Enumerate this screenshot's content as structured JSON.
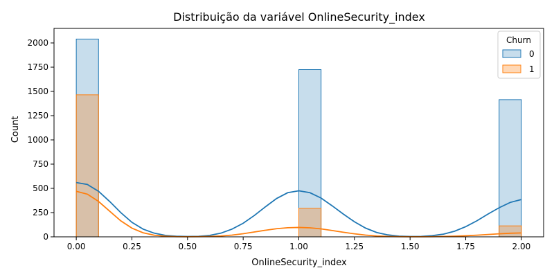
{
  "chart_data": {
    "type": "histogram",
    "title": "Distribuição da variável OnlineSecurity_index",
    "xlabel": "OnlineSecurity_index",
    "ylabel": "Count",
    "xlim": [
      -0.1,
      2.1
    ],
    "ylim": [
      0,
      2150
    ],
    "xticks": [
      0.0,
      0.25,
      0.5,
      0.75,
      1.0,
      1.25,
      1.5,
      1.75,
      2.0
    ],
    "xtick_labels": [
      "0.00",
      "0.25",
      "0.50",
      "0.75",
      "1.00",
      "1.25",
      "1.50",
      "1.75",
      "2.00"
    ],
    "yticks": [
      0,
      250,
      500,
      750,
      1000,
      1250,
      1500,
      1750,
      2000
    ],
    "ytick_labels": [
      "0",
      "250",
      "500",
      "750",
      "1000",
      "1250",
      "1500",
      "1750",
      "2000"
    ],
    "bin_width": 0.1,
    "bins": [
      0.0,
      1.0,
      1.9
    ],
    "grid": false,
    "legend": {
      "title": "Churn",
      "position": "top-right"
    },
    "series": [
      {
        "name": "0",
        "color": "#1f77b4",
        "values": [
          2040,
          1725,
          1415
        ],
        "kde": [
          [
            0.0,
            560
          ],
          [
            0.05,
            540
          ],
          [
            0.1,
            470
          ],
          [
            0.15,
            365
          ],
          [
            0.2,
            250
          ],
          [
            0.25,
            150
          ],
          [
            0.3,
            80
          ],
          [
            0.35,
            38
          ],
          [
            0.4,
            15
          ],
          [
            0.45,
            6
          ],
          [
            0.5,
            3
          ],
          [
            0.55,
            5
          ],
          [
            0.6,
            15
          ],
          [
            0.65,
            38
          ],
          [
            0.7,
            80
          ],
          [
            0.75,
            140
          ],
          [
            0.8,
            220
          ],
          [
            0.85,
            310
          ],
          [
            0.9,
            395
          ],
          [
            0.95,
            455
          ],
          [
            1.0,
            475
          ],
          [
            1.05,
            455
          ],
          [
            1.1,
            400
          ],
          [
            1.15,
            320
          ],
          [
            1.2,
            235
          ],
          [
            1.25,
            155
          ],
          [
            1.3,
            90
          ],
          [
            1.35,
            45
          ],
          [
            1.4,
            20
          ],
          [
            1.45,
            7
          ],
          [
            1.5,
            3
          ],
          [
            1.55,
            4
          ],
          [
            1.6,
            12
          ],
          [
            1.65,
            28
          ],
          [
            1.7,
            58
          ],
          [
            1.75,
            105
          ],
          [
            1.8,
            165
          ],
          [
            1.85,
            235
          ],
          [
            1.9,
            300
          ],
          [
            1.95,
            355
          ],
          [
            2.0,
            385
          ]
        ]
      },
      {
        "name": "1",
        "color": "#ff7f0e",
        "values": [
          1465,
          295,
          113
        ],
        "kde": [
          [
            0.0,
            470
          ],
          [
            0.05,
            440
          ],
          [
            0.1,
            365
          ],
          [
            0.15,
            265
          ],
          [
            0.2,
            165
          ],
          [
            0.25,
            90
          ],
          [
            0.3,
            42
          ],
          [
            0.35,
            17
          ],
          [
            0.4,
            6
          ],
          [
            0.45,
            2
          ],
          [
            0.5,
            1
          ],
          [
            0.55,
            2
          ],
          [
            0.6,
            4
          ],
          [
            0.65,
            9
          ],
          [
            0.7,
            18
          ],
          [
            0.75,
            32
          ],
          [
            0.8,
            50
          ],
          [
            0.85,
            68
          ],
          [
            0.9,
            84
          ],
          [
            0.95,
            94
          ],
          [
            1.0,
            97
          ],
          [
            1.05,
            93
          ],
          [
            1.1,
            82
          ],
          [
            1.15,
            65
          ],
          [
            1.2,
            47
          ],
          [
            1.25,
            31
          ],
          [
            1.3,
            18
          ],
          [
            1.35,
            9
          ],
          [
            1.4,
            4
          ],
          [
            1.45,
            2
          ],
          [
            1.5,
            1
          ],
          [
            1.55,
            1
          ],
          [
            1.6,
            2
          ],
          [
            1.65,
            4
          ],
          [
            1.7,
            7
          ],
          [
            1.75,
            11
          ],
          [
            1.8,
            17
          ],
          [
            1.85,
            24
          ],
          [
            1.9,
            31
          ],
          [
            1.95,
            37
          ],
          [
            2.0,
            40
          ]
        ]
      }
    ]
  }
}
